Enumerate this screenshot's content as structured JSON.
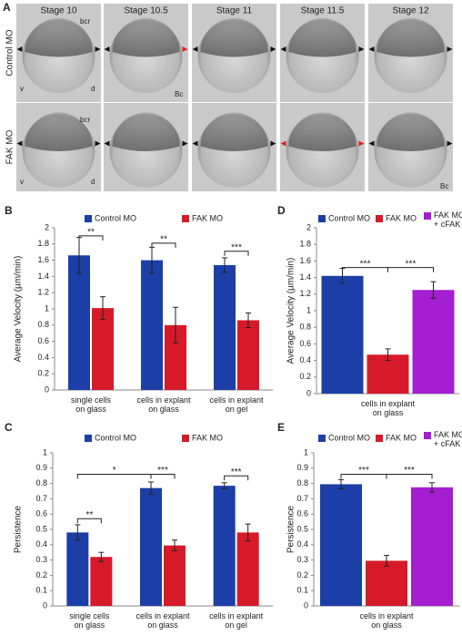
{
  "panel_a": {
    "label": "A",
    "stages": [
      "Stage 10",
      "Stage 10.5",
      "Stage 11",
      "Stage 11.5",
      "Stage 12"
    ],
    "rows": [
      "Control MO",
      "FAK MO"
    ],
    "labels": [
      "bcr",
      "Bc",
      "v",
      "d",
      "bcr",
      "v",
      "d",
      "Bc"
    ]
  },
  "chart_data": [
    {
      "type": "bar",
      "panel_label": "B",
      "y_label": "Average Velocity (µm/min)",
      "categories": [
        "single cells\non glass",
        "cells in explant\non glass",
        "cells in explant\non gel"
      ],
      "series": [
        {
          "name": "Control MO",
          "color": "#1b3fa6",
          "values": [
            1.66,
            1.6,
            1.54
          ],
          "errors": [
            0.22,
            0.16,
            0.09
          ]
        },
        {
          "name": "FAK MO",
          "color": "#d71a2a",
          "values": [
            1.01,
            0.8,
            0.86
          ],
          "errors": [
            0.14,
            0.22,
            0.09
          ]
        }
      ],
      "ylim": [
        0,
        2
      ],
      "yticks": [
        0,
        0.2,
        0.4,
        0.6,
        0.8,
        1,
        1.2,
        1.4,
        1.6,
        1.8,
        2
      ],
      "annotations": [
        "**",
        "**",
        "***"
      ]
    },
    {
      "type": "bar",
      "panel_label": "D",
      "y_label": "Average Velocity (µm/min)",
      "categories": [
        "cells in explant\non glass"
      ],
      "series": [
        {
          "name": "Control MO",
          "color": "#1b3fa6",
          "values": [
            1.42
          ],
          "errors": [
            0.09
          ]
        },
        {
          "name": "FAK MO",
          "color": "#d71a2a",
          "values": [
            0.47
          ],
          "errors": [
            0.07
          ]
        },
        {
          "name": "FAK MO\n+ cFAK",
          "color": "#a41fd0",
          "values": [
            1.25
          ],
          "errors": [
            0.1
          ]
        }
      ],
      "ylim": [
        0,
        2
      ],
      "yticks": [
        0,
        0.2,
        0.4,
        0.6,
        0.8,
        1,
        1.2,
        1.4,
        1.6,
        1.8,
        2
      ],
      "annotations": [
        "***",
        "***"
      ]
    },
    {
      "type": "bar",
      "panel_label": "C",
      "y_label": "Persistence",
      "categories": [
        "single cells\non glass",
        "cells in explant\non glass",
        "cells in explant\non gel"
      ],
      "series": [
        {
          "name": "Control MO",
          "color": "#1b3fa6",
          "values": [
            0.48,
            0.77,
            0.785
          ],
          "errors": [
            0.05,
            0.04,
            0.02
          ]
        },
        {
          "name": "FAK MO",
          "color": "#d71a2a",
          "values": [
            0.32,
            0.395,
            0.48
          ],
          "errors": [
            0.03,
            0.035,
            0.055
          ]
        }
      ],
      "ylim": [
        0,
        1
      ],
      "yticks": [
        0,
        0.1,
        0.2,
        0.3,
        0.4,
        0.5,
        0.6,
        0.7,
        0.8,
        0.9,
        1
      ],
      "annotations": [
        "**",
        "*",
        "***",
        "***"
      ]
    },
    {
      "type": "bar",
      "panel_label": "E",
      "y_label": "Persistence",
      "categories": [
        "cells in explant\non glass"
      ],
      "series": [
        {
          "name": "Control MO",
          "color": "#1b3fa6",
          "values": [
            0.795
          ],
          "errors": [
            0.03
          ]
        },
        {
          "name": "FAK MO",
          "color": "#d71a2a",
          "values": [
            0.295
          ],
          "errors": [
            0.035
          ]
        },
        {
          "name": "FAK MO\n+ cFAK",
          "color": "#a41fd0",
          "values": [
            0.775
          ],
          "errors": [
            0.03
          ]
        }
      ],
      "ylim": [
        0,
        1
      ],
      "yticks": [
        0,
        0.1,
        0.2,
        0.3,
        0.4,
        0.5,
        0.6,
        0.7,
        0.8,
        0.9,
        1
      ],
      "annotations": [
        "***",
        "***"
      ]
    }
  ]
}
